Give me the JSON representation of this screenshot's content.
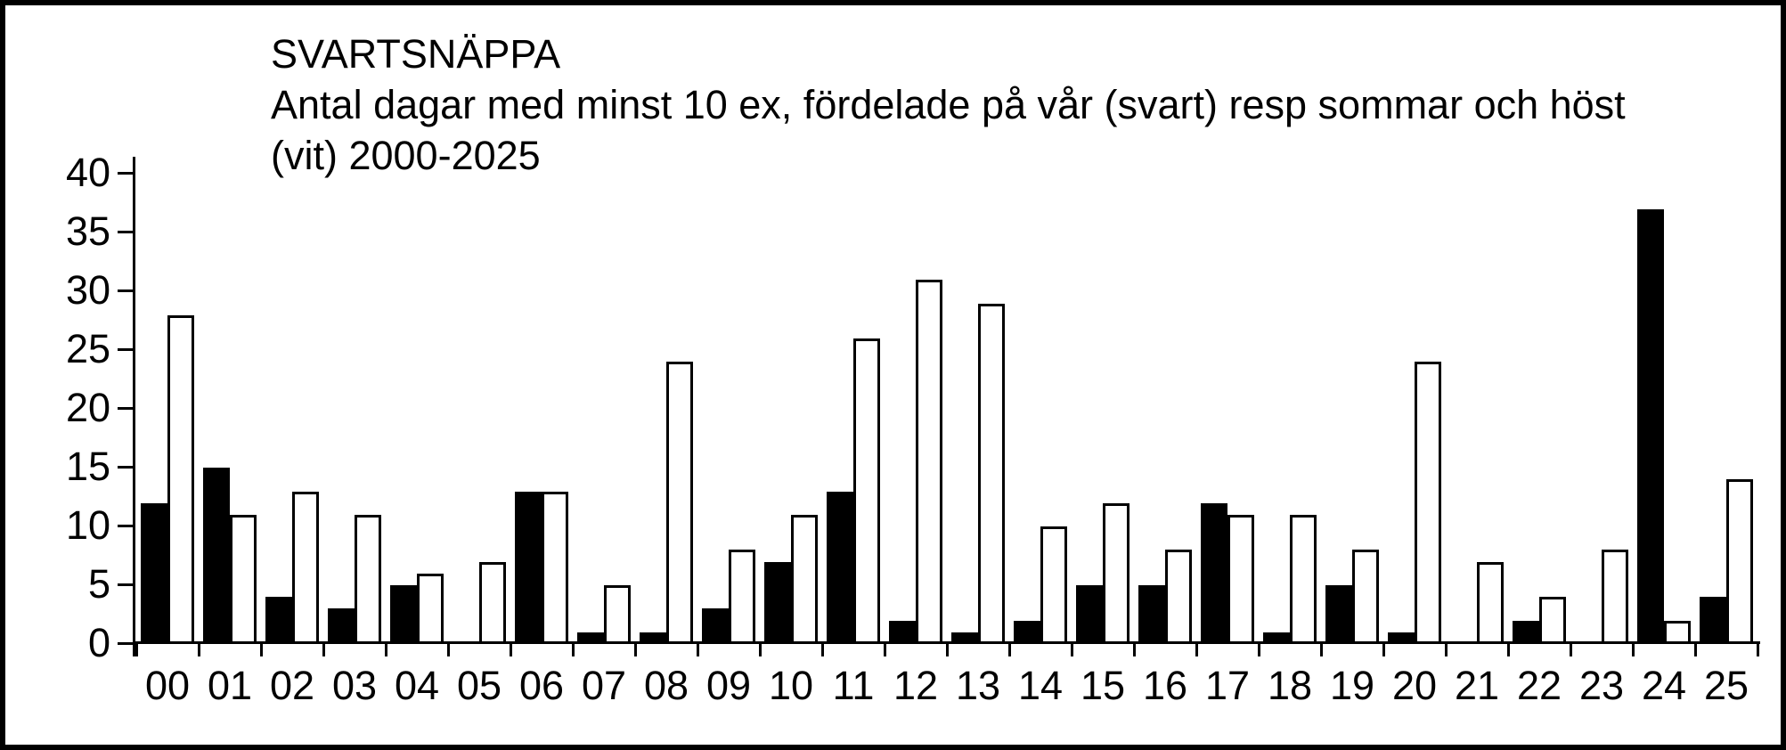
{
  "figure": {
    "title_line1": "SVARTSNÄPPA",
    "title_line2": "Antal dagar med minst 10 ex, fördelade på vår (svart) resp sommar och höst",
    "title_line3": "(vit) 2000-2025"
  },
  "chart_data": {
    "type": "bar",
    "title": "SVARTSNÄPPA",
    "subtitle": "Antal dagar med minst 10 ex, fördelade på vår (svart) resp sommar och höst (vit) 2000-2025",
    "categories": [
      "00",
      "01",
      "02",
      "03",
      "04",
      "05",
      "06",
      "07",
      "08",
      "09",
      "10",
      "11",
      "12",
      "13",
      "14",
      "15",
      "16",
      "17",
      "18",
      "19",
      "20",
      "21",
      "22",
      "23",
      "24",
      "25"
    ],
    "series": [
      {
        "name": "vår (svart)",
        "fill_color": "#000000",
        "values": [
          12,
          15,
          4,
          3,
          5,
          0,
          13,
          1,
          1,
          3,
          7,
          13,
          2,
          1,
          2,
          5,
          5,
          12,
          1,
          5,
          1,
          0,
          2,
          0,
          37,
          4
        ]
      },
      {
        "name": "sommar och höst (vit)",
        "fill_color": "#ffffff",
        "values": [
          28,
          11,
          13,
          11,
          6,
          7,
          13,
          5,
          24,
          8,
          11,
          26,
          31,
          29,
          10,
          12,
          8,
          11,
          11,
          8,
          24,
          7,
          4,
          8,
          2,
          14
        ]
      }
    ],
    "xlabel": "",
    "ylabel": "",
    "ylim": [
      0,
      40
    ],
    "yticks": [
      0,
      5,
      10,
      15,
      20,
      25,
      30,
      35,
      40
    ],
    "grid": false,
    "legend_position": "none",
    "bar_outline_color": "#000000",
    "background_color": "#ffffff",
    "border_color": "#000000"
  }
}
